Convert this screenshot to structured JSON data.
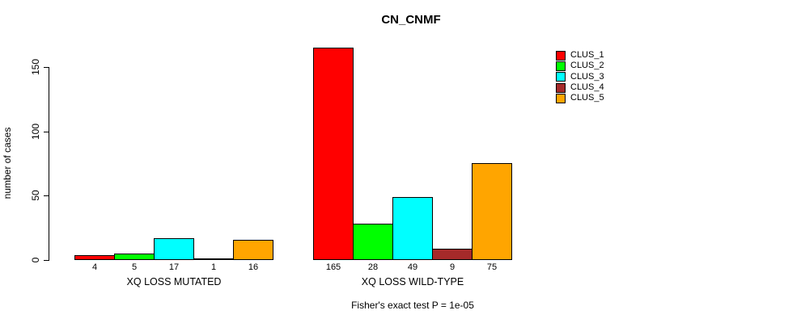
{
  "chart_data": {
    "type": "bar",
    "title": "CN_CNMF",
    "ylabel": "number of cases",
    "xlabel": "",
    "annotation": "Fisher's exact test P = 1e-05",
    "categories": [
      "XQ LOSS MUTATED",
      "XQ LOSS WILD-TYPE"
    ],
    "series": [
      {
        "name": "CLUS_1",
        "color": "#FF0000",
        "values": [
          4,
          165
        ]
      },
      {
        "name": "CLUS_2",
        "color": "#00FF00",
        "values": [
          5,
          28
        ]
      },
      {
        "name": "CLUS_3",
        "color": "#00FFFF",
        "values": [
          17,
          49
        ]
      },
      {
        "name": "CLUS_4",
        "color": "#A52A2A",
        "values": [
          1,
          9
        ]
      },
      {
        "name": "CLUS_5",
        "color": "#FFA500",
        "values": [
          16,
          75
        ]
      }
    ],
    "show_value_labels": true,
    "yticks": [
      0,
      50,
      100,
      150
    ],
    "ylim": [
      0,
      165
    ],
    "grid": false,
    "legend_position": "right",
    "bar_border_color": "#000000",
    "background_color": "#FFFFFF",
    "text_color": "#000000"
  }
}
